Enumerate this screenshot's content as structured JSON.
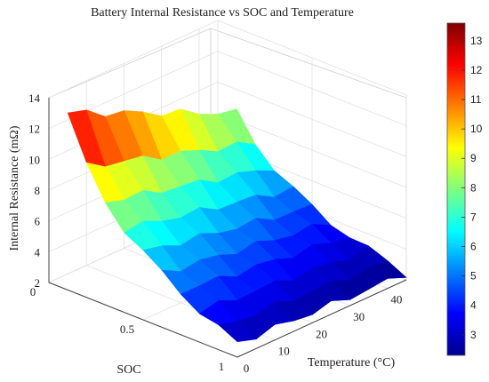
{
  "chart_data": {
    "type": "surface3d",
    "title": "Battery Internal Resistance vs SOC and Temperature",
    "xlabel": "SOC",
    "ylabel": "Temperature (°C)",
    "zlabel": "Internal Resistance (mΩ)",
    "x_ticks": [
      "0",
      "0.5",
      "1"
    ],
    "y_ticks": [
      "0",
      "10",
      "20",
      "30",
      "40"
    ],
    "z_ticks": [
      "2",
      "4",
      "6",
      "8",
      "10",
      "12",
      "14"
    ],
    "xlim": [
      0,
      1
    ],
    "ylim": [
      0,
      45
    ],
    "zlim": [
      2,
      14
    ],
    "colormap": "jet",
    "colorbar": {
      "ticks": [
        "3",
        "4",
        "5",
        "6",
        "7",
        "8",
        "9",
        "10",
        "11",
        "12",
        "13"
      ],
      "range": [
        2.3,
        13.6
      ]
    },
    "grid": true,
    "soc": [
      0.1,
      0.2,
      0.3,
      0.4,
      0.5,
      0.6,
      0.7,
      0.8,
      0.9,
      1.0
    ],
    "temperature": [
      0,
      5,
      10,
      15,
      20,
      25,
      30,
      35,
      40,
      45
    ],
    "resistance_at_0C": [
      13.5,
      10.5,
      8.7,
      7.4,
      6.4,
      5.5,
      4.8,
      4.0,
      3.4,
      2.9
    ],
    "resistance_at_45C": [
      8.5,
      7.0,
      5.9,
      5.0,
      4.3,
      3.8,
      3.4,
      3.0,
      2.7,
      2.4
    ]
  }
}
